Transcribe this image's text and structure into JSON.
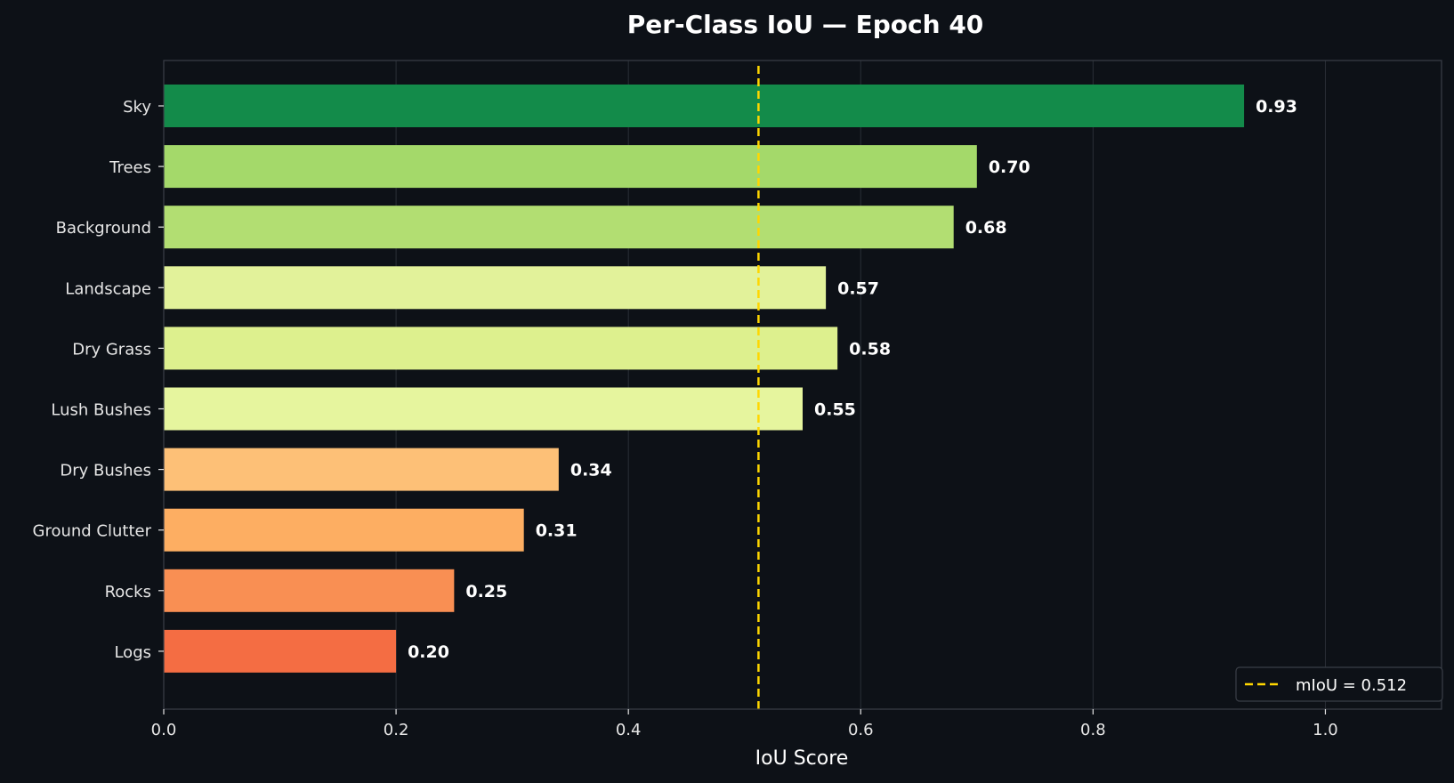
{
  "chart_data": {
    "type": "bar",
    "orientation": "horizontal",
    "title": "Per-Class IoU — Epoch 40",
    "xlabel": "IoU Score",
    "ylabel": "",
    "xlim": [
      0,
      1.1
    ],
    "xticks": [
      0.0,
      0.2,
      0.4,
      0.6,
      0.8,
      1.0
    ],
    "xtick_labels": [
      "0.0",
      "0.2",
      "0.4",
      "0.6",
      "0.8",
      "1.0"
    ],
    "grid": "vertical",
    "categories": [
      "Sky",
      "Trees",
      "Background",
      "Landscape",
      "Dry Grass",
      "Lush Bushes",
      "Dry Bushes",
      "Ground Clutter",
      "Rocks",
      "Logs"
    ],
    "values": [
      0.93,
      0.7,
      0.68,
      0.57,
      0.58,
      0.55,
      0.34,
      0.31,
      0.25,
      0.2
    ],
    "value_labels": [
      "0.93",
      "0.70",
      "0.68",
      "0.57",
      "0.58",
      "0.55",
      "0.34",
      "0.31",
      "0.25",
      "0.20"
    ],
    "bar_colors": [
      "#138b4a",
      "#a4d96a",
      "#b2de72",
      "#e2f29a",
      "#ddf08e",
      "#e6f59e",
      "#fdc077",
      "#fdae62",
      "#f98f53",
      "#f46d43"
    ],
    "reference_line": {
      "value": 0.512,
      "label": "mIoU = 0.512",
      "color": "#ffd700",
      "style": "dashed"
    },
    "legend_position": "bottom-right"
  },
  "colors": {
    "background": "#0d1117",
    "axes_edge": "#3a3f47",
    "grid": "#2a2f37",
    "text": "#e6e6e6"
  }
}
